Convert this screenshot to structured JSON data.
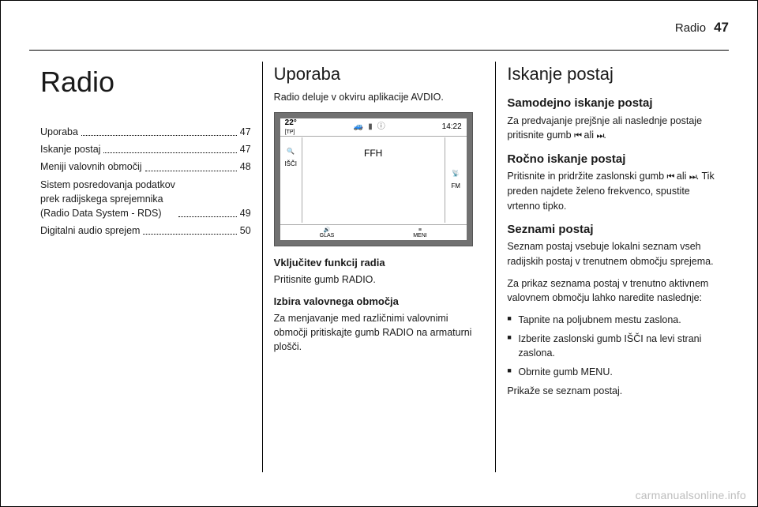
{
  "header": {
    "chapter": "Radio",
    "page": "47"
  },
  "col1": {
    "title": "Radio",
    "toc": [
      {
        "label": "Uporaba",
        "page": "47"
      },
      {
        "label": "Iskanje postaj",
        "page": "47"
      },
      {
        "label": "Meniji valovnih območij",
        "page": "48"
      },
      {
        "label": "Sistem posredovanja podatkov\nprek radijskega sprejemnika\n(Radio Data System - RDS)",
        "page": "49"
      },
      {
        "label": "Digitalni audio sprejem",
        "page": "50"
      }
    ]
  },
  "col2": {
    "title": "Uporaba",
    "intro": "Radio deluje v okviru aplikacije AVDIO.",
    "screenshot": {
      "temp": "22°",
      "tp": "[TP]",
      "clock": "14:22",
      "station": "FFH",
      "band": "FM",
      "left_label": "IŠČI",
      "bottom_left_label": "GLAS",
      "bottom_right_label": "MENI"
    },
    "sec1_head": "Vključitev funkcij radia",
    "sec1_body": "Pritisnite gumb RADIO.",
    "sec2_head": "Izbira valovnega območja",
    "sec2_body": "Za menjavanje med različnimi valovnimi območji pritiskajte gumb RADIO na armaturni plošči."
  },
  "col3": {
    "title": "Iskanje postaj",
    "auto_head": "Samodejno iskanje postaj",
    "auto_body_pre": "Za predvajanje prejšnje ali naslednje postaje pritisnite gumb ",
    "auto_body_mid": " ali ",
    "auto_body_post": ".",
    "manual_head": "Ročno iskanje postaj",
    "manual_body_pre": "Pritisnite in pridržite zaslonski gumb ",
    "manual_body_mid": " ali ",
    "manual_body_post": ". Tik preden najdete želeno frekvenco, spustite vrtenno tipko.",
    "lists_head": "Seznami postaj",
    "lists_p1": "Seznam postaj vsebuje lokalni seznam vseh radijskih postaj v trenutnem območju sprejema.",
    "lists_p2": "Za prikaz seznama postaj v trenutno aktivnem valovnem območju lahko naredite naslednje:",
    "bullets": [
      "Tapnite na poljubnem mestu zaslona.",
      "Izberite zaslonski gumb IŠČI na levi strani zaslona.",
      "Obrnite gumb MENU."
    ],
    "closing": "Prikaže se seznam postaj."
  },
  "watermark": "carmanualsonline.info"
}
